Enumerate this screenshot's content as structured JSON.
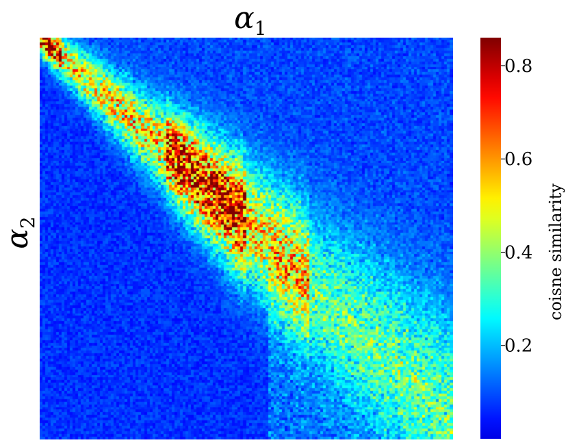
{
  "chart_data": {
    "type": "heatmap",
    "title": "α",
    "title_subscript": "1",
    "ylabel": "α",
    "ylabel_subscript": "2",
    "xlabel": "",
    "grid": false,
    "colormap": "jet",
    "colorbar": {
      "label": "coisne similarity",
      "ticks": [
        0.2,
        0.4,
        0.6,
        0.8
      ],
      "tick_labels": [
        "0.2",
        "0.4",
        "0.6",
        "0.8"
      ],
      "range": [
        0.0,
        0.86
      ]
    },
    "description_of_values": {
      "matrix_size": [
        150,
        150
      ],
      "pattern": "diagonal band of high similarity running from top-left (row 0, col 0) to roughly (row 95, col 100), peaking near 0.86 around the band center, spreading into a wider noisy band toward lower-right; background mostly 0.0–0.15"
    },
    "peak_points": [
      {
        "row": 2,
        "col": 1,
        "value": 0.8
      },
      {
        "row": 30,
        "col": 28,
        "value": 0.55
      },
      {
        "row": 55,
        "col": 60,
        "value": 0.86
      },
      {
        "row": 62,
        "col": 70,
        "value": 0.78
      },
      {
        "row": 75,
        "col": 82,
        "value": 0.55
      },
      {
        "row": 95,
        "col": 105,
        "value": 0.35
      }
    ]
  }
}
